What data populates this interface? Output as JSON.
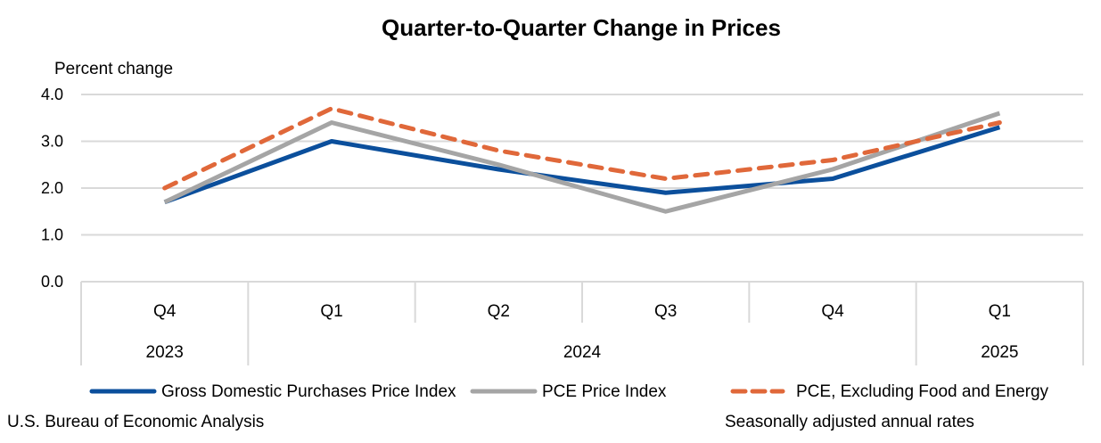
{
  "chart_data": {
    "type": "line",
    "title": "Quarter-to-Quarter Change in Prices",
    "ylabel": "Percent change",
    "xlabel": "",
    "ylim": [
      0,
      4
    ],
    "yticks": [
      "0.0",
      "1.0",
      "2.0",
      "3.0",
      "4.0"
    ],
    "ytick_values": [
      0,
      1,
      2,
      3,
      4
    ],
    "grid": true,
    "legend_position": "bottom",
    "categories": [
      "Q4 2023",
      "Q1 2024",
      "Q2 2024",
      "Q3 2024",
      "Q4 2024",
      "Q1 2025"
    ],
    "quarter_labels": [
      "Q4",
      "Q1",
      "Q2",
      "Q3",
      "Q4",
      "Q1"
    ],
    "year_groups": [
      {
        "label": "2023",
        "span": 1
      },
      {
        "label": "2024",
        "span": 4
      },
      {
        "label": "2025",
        "span": 1
      }
    ],
    "series": [
      {
        "name": "Gross Domestic Purchases Price Index",
        "color": "#0B4F9C",
        "style": "solid",
        "values": [
          1.7,
          3.0,
          2.4,
          1.9,
          2.2,
          3.3
        ]
      },
      {
        "name": "PCE Price Index",
        "color": "#A5A5A5",
        "style": "solid",
        "values": [
          1.7,
          3.4,
          2.5,
          1.5,
          2.4,
          3.6
        ]
      },
      {
        "name": "PCE, Excluding Food and Energy",
        "color": "#E0683A",
        "style": "dashed",
        "values": [
          2.0,
          3.7,
          2.8,
          2.2,
          2.6,
          3.4
        ]
      }
    ],
    "footer_left": "U.S. Bureau of Economic Analysis",
    "footer_right": "Seasonally adjusted annual rates"
  }
}
